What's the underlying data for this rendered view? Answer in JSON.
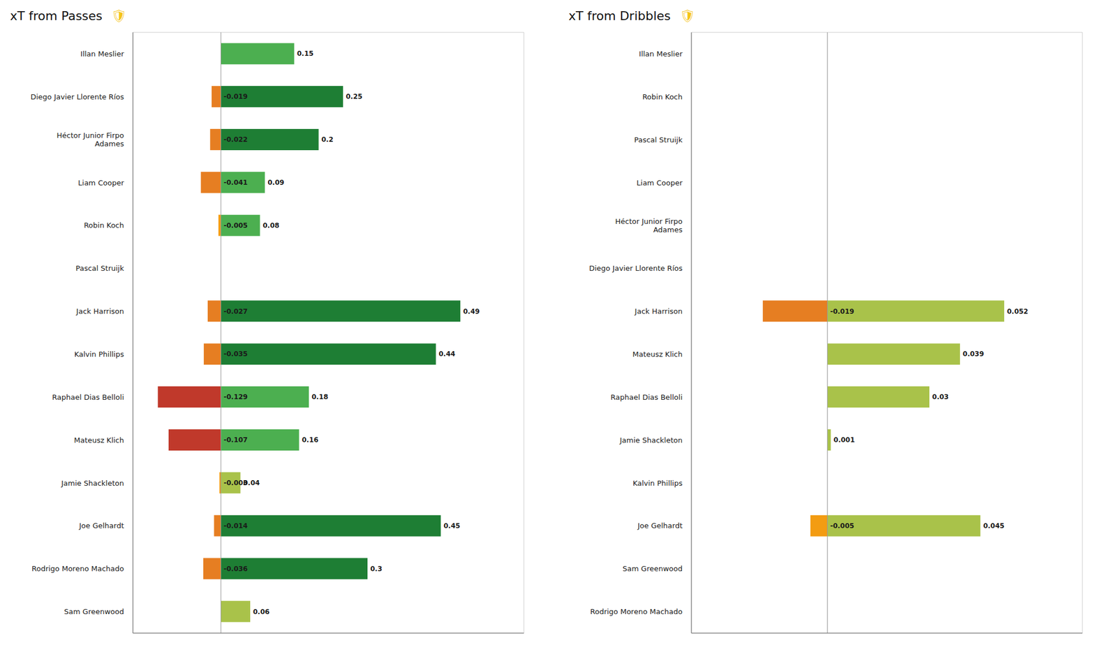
{
  "chart_data": [
    {
      "type": "bar",
      "title": "xT from Passes",
      "annotation": "🛡",
      "orientation": "horizontal",
      "stacked": true,
      "categories": [
        "Illan Meslier",
        "Diego Javier Llorente Ríos",
        "Héctor Junior Firpo\nAdames",
        "Liam Cooper",
        "Robin Koch",
        "Pascal Struijk",
        "Jack Harrison",
        "Kalvin Phillips",
        "Raphael Dias Belloli",
        "Mateusz Klich",
        "Jamie Shackleton",
        "Joe Gelhardt",
        "Rodrigo Moreno Machado",
        "Sam Greenwood"
      ],
      "series": [
        {
          "values": [
            0,
            -0.019,
            -0.022,
            -0.041,
            -0.005,
            0,
            -0.027,
            -0.035,
            -0.129,
            -0.107,
            -0.003,
            -0.014,
            -0.036,
            0
          ],
          "colors": [
            "#e67e22",
            "#e67e22",
            "#e67e22",
            "#e67e22",
            "#f39c12",
            "#e67e22",
            "#e67e22",
            "#e67e22",
            "#c0392b",
            "#c0392b",
            "#f39c12",
            "#e67e22",
            "#e67e22",
            "#e67e22"
          ]
        },
        {
          "values": [
            0.15,
            0.25,
            0.2,
            0.09,
            0.08,
            0,
            0.49,
            0.44,
            0.18,
            0.16,
            0.04,
            0.45,
            0.3,
            0.06
          ],
          "colors": [
            "#4caf50",
            "#1e7e34",
            "#1e7e34",
            "#4caf50",
            "#4caf50",
            "#a9c24a",
            "#1e7e34",
            "#1e7e34",
            "#4caf50",
            "#4caf50",
            "#a9c24a",
            "#1e7e34",
            "#1e7e34",
            "#a9c24a"
          ]
        }
      ],
      "xlim": [
        -0.18,
        0.62
      ],
      "xticks": [],
      "tick_labels": "y",
      "data_labels": true,
      "grid": false
    },
    {
      "type": "bar",
      "title": "xT from Dribbles",
      "annotation": "🛡",
      "orientation": "horizontal",
      "stacked": true,
      "categories": [
        "Illan Meslier",
        "Robin Koch",
        "Pascal Struijk",
        "Liam Cooper",
        "Héctor Junior Firpo\nAdames",
        "Diego Javier Llorente Ríos",
        "Jack Harrison",
        "Mateusz Klich",
        "Raphael Dias Belloli",
        "Jamie Shackleton",
        "Kalvin Phillips",
        "Joe Gelhardt",
        "Sam Greenwood",
        "Rodrigo Moreno Machado"
      ],
      "series": [
        {
          "values": [
            0,
            0,
            0,
            0,
            0,
            0,
            -0.019,
            0,
            0,
            0,
            0,
            -0.005,
            0,
            0
          ],
          "colors": [
            "#e67e22",
            "#e67e22",
            "#e67e22",
            "#e67e22",
            "#e67e22",
            "#e67e22",
            "#e67e22",
            "#e67e22",
            "#e67e22",
            "#e67e22",
            "#e67e22",
            "#f39c12",
            "#e67e22",
            "#e67e22"
          ]
        },
        {
          "values": [
            0,
            0,
            0,
            0,
            0,
            0,
            0.052,
            0.039,
            0.03,
            0.001,
            0,
            0.045,
            0,
            0
          ],
          "colors": [
            "#a9c24a",
            "#a9c24a",
            "#a9c24a",
            "#a9c24a",
            "#a9c24a",
            "#a9c24a",
            "#a9c24a",
            "#a9c24a",
            "#a9c24a",
            "#a9c24a",
            "#a9c24a",
            "#a9c24a",
            "#a9c24a",
            "#a9c24a"
          ]
        }
      ],
      "xlim": [
        -0.04,
        0.075
      ],
      "xticks": [],
      "tick_labels": "y",
      "data_labels": true,
      "grid": false
    }
  ]
}
